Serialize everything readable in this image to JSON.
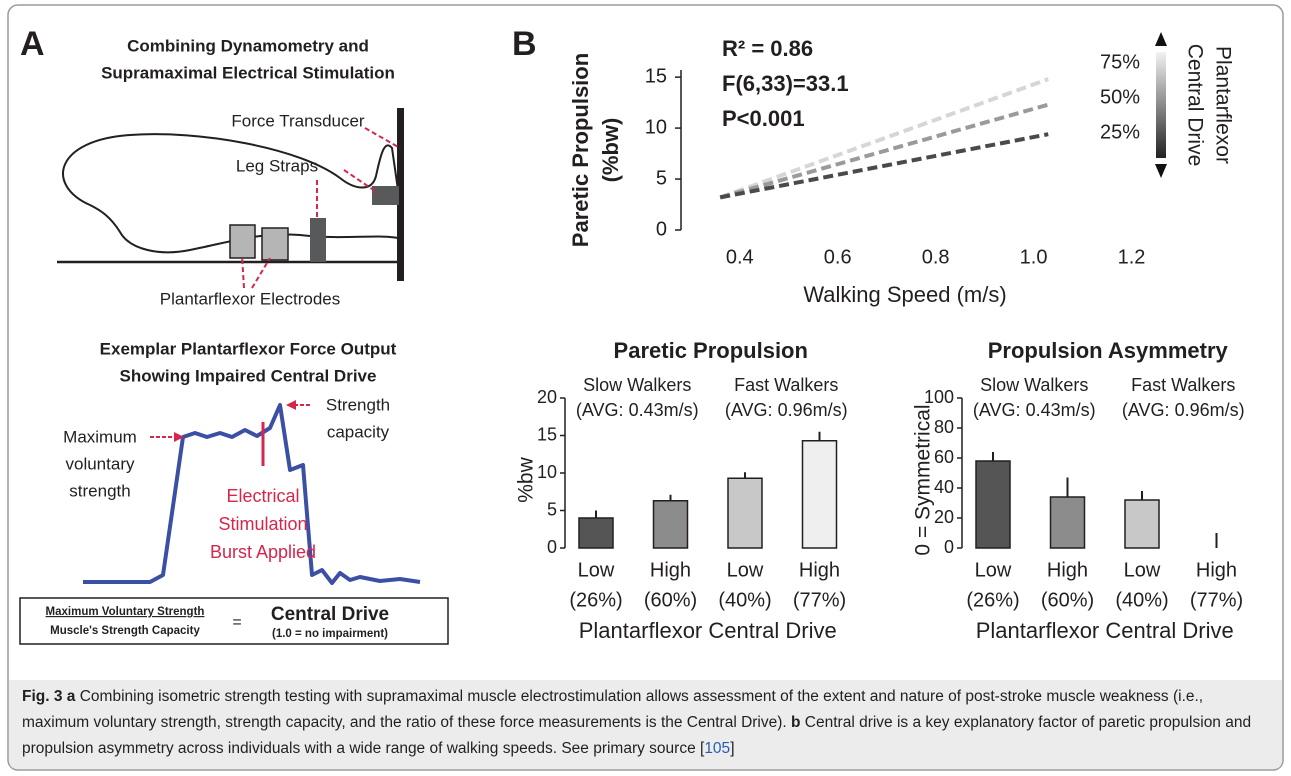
{
  "panel_a": {
    "letter": "A",
    "title_lines": [
      "Combining Dynamometry and",
      "Supramaximal Electrical Stimulation"
    ],
    "labels": {
      "force_transducer": "Force Transducer",
      "leg_straps": "Leg Straps",
      "electrodes": "Plantarflexor Electrodes"
    },
    "trace_title_lines": [
      "Exemplar Plantarflexor Force Output",
      "Showing Impaired Central Drive"
    ],
    "mvs_lines": [
      "Maximum",
      "voluntary",
      "strength"
    ],
    "capacity_lines": [
      "Strength",
      "capacity"
    ],
    "stim_lines": [
      "Electrical",
      "Stimulation",
      "Burst Applied"
    ],
    "formula": {
      "numerator": "Maximum Voluntary Strength",
      "denominator": "Muscle's Strength Capacity",
      "equals": "=",
      "result": "Central Drive",
      "note": "(1.0 = no impairment)"
    }
  },
  "panel_b_letter": "B",
  "chart_data": [
    {
      "type": "line",
      "ylabel": [
        "Paretic Propulsion",
        "(%bw)"
      ],
      "xlabel": "Walking Speed (m/s)",
      "annotations": [
        "R² = 0.86",
        "F(6,33)=33.1",
        "P<0.001"
      ],
      "legend_title": [
        "Plantarflexor",
        "Central Drive"
      ],
      "x": [
        0.36,
        1.03
      ],
      "series": [
        {
          "name": "75%",
          "color": "#d6d6d6",
          "values": [
            3.2,
            14.8
          ]
        },
        {
          "name": "50%",
          "color": "#9a9a9a",
          "values": [
            3.2,
            12.3
          ]
        },
        {
          "name": "25%",
          "color": "#4a4a4a",
          "values": [
            3.2,
            9.4
          ]
        }
      ],
      "xlim": [
        0.28,
        1.25
      ],
      "xticks": [
        0.4,
        0.6,
        0.8,
        {
          "value": 1,
          "label": "1.0"
        },
        1.2
      ],
      "ylim": [
        0,
        15.7
      ],
      "yticks": [
        0,
        5,
        10,
        15
      ]
    },
    {
      "type": "bar",
      "title": "Paretic Propulsion",
      "ylabel": "%bw",
      "xlabel": "Plantarflexor Central Drive",
      "groups": [
        {
          "name": "Slow Walkers",
          "detail": "(AVG: 0.43m/s)"
        },
        {
          "name": "Fast Walkers",
          "detail": "(AVG: 0.96m/s)"
        }
      ],
      "categories": [
        "Low",
        "High",
        "Low",
        "High"
      ],
      "category_sublabels": [
        "(26%)",
        "(60%)",
        "(40%)",
        "(77%)"
      ],
      "values": [
        4.0,
        6.3,
        9.3,
        14.3
      ],
      "errors": [
        1.0,
        0.8,
        0.8,
        1.2
      ],
      "colors": [
        "#555555",
        "#8c8c8c",
        "#c8c8c8",
        "#efefef"
      ],
      "ylim": [
        0,
        20
      ],
      "yticks": [
        0,
        5,
        10,
        15,
        20
      ]
    },
    {
      "type": "bar",
      "title": "Propulsion Asymmetry",
      "ylabel": "0 = Symmetrical",
      "xlabel": "Plantarflexor Central Drive",
      "groups": [
        {
          "name": "Slow Walkers",
          "detail": "(AVG: 0.43m/s)"
        },
        {
          "name": "Fast Walkers",
          "detail": "(AVG: 0.96m/s)"
        }
      ],
      "categories": [
        "Low",
        "High",
        "Low",
        "High"
      ],
      "category_sublabels": [
        "(26%)",
        "(60%)",
        "(40%)",
        "(77%)"
      ],
      "values": [
        58,
        34,
        32,
        0
      ],
      "errors": [
        6,
        13,
        6,
        10
      ],
      "colors": [
        "#555555",
        "#8c8c8c",
        "#c8c8c8",
        "#efefef"
      ],
      "ylim": [
        0,
        100
      ],
      "yticks": [
        0,
        20,
        40,
        60,
        80,
        100
      ]
    }
  ],
  "caption": {
    "label": "Fig. 3",
    "a_marker": "a",
    "a_text": " Combining isometric strength testing with supramaximal muscle electrostimulation allows assessment of the extent and nature of post-stroke muscle weakness (i.e., maximum voluntary strength, strength capacity, and the ratio of these force measurements is the Central Drive). ",
    "b_marker": "b",
    "b_text": " Central drive is a key explanatory factor of paretic propulsion and propulsion asymmetry across individuals with a wide range of walking speeds. See primary source [",
    "ref": "105",
    "ref_end": "]"
  }
}
